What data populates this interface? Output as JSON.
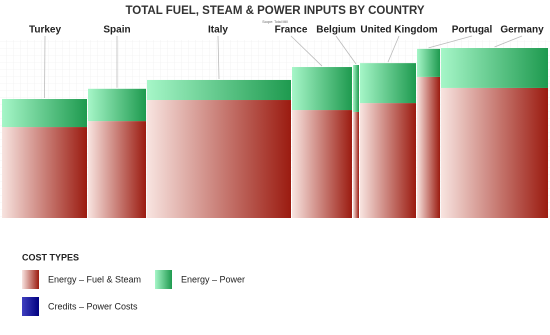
{
  "chart_data": {
    "type": "mekko",
    "title": "TOTAL FUEL, STEAM & POWER INPUTS BY COUNTRY",
    "subtitle": "Scope: Total Mill",
    "categories": [
      "Turkey",
      "Spain",
      "Italy",
      "France",
      "Belgium",
      "United Kingdom",
      "Portugal",
      "Germany"
    ],
    "widths": [
      85,
      58,
      144,
      60,
      6,
      56,
      23,
      107
    ],
    "series": [
      {
        "name": "Energy – Fuel & Steam",
        "color": "#9b1b10",
        "values": [
          53.5,
          57,
          69.4,
          63.5,
          62.4,
          67.6,
          83,
          76.5
        ]
      },
      {
        "name": "Energy – Power",
        "color": "#1e9a4f",
        "values": [
          16.5,
          19,
          11.8,
          25.3,
          27.6,
          23.5,
          16.5,
          23.5
        ]
      },
      {
        "name": "Credits – Power Costs",
        "color": "#000080",
        "values": [
          0,
          0,
          0,
          0,
          0,
          0,
          0,
          0
        ]
      }
    ],
    "ylim": [
      0,
      100
    ],
    "grid": true,
    "legend_title": "COST TYPES"
  }
}
